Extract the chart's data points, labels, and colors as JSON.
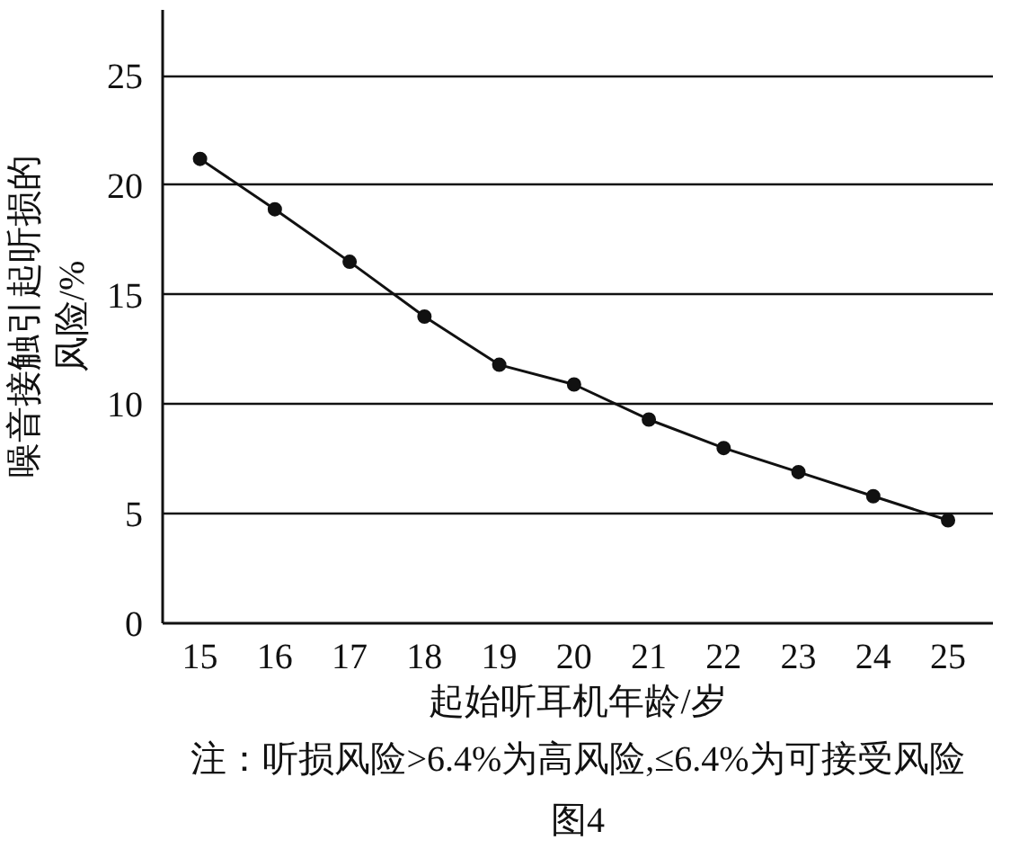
{
  "chart_data": {
    "type": "line",
    "xlabel": "起始听耳机年龄/岁",
    "ylabel": "噪音接触引起听损的风险/%",
    "x": [
      15,
      16,
      17,
      18,
      19,
      20,
      21,
      22,
      23,
      24,
      25
    ],
    "series": [
      {
        "color": "#111111",
        "values": [
          21.2,
          18.9,
          16.5,
          14.0,
          11.8,
          10.9,
          9.3,
          8.0,
          6.9,
          5.8,
          4.7
        ]
      }
    ],
    "xlim": [
      14.5,
      25.6
    ],
    "xticks": [
      15,
      16,
      17,
      18,
      19,
      20,
      21,
      22,
      23,
      24,
      25
    ],
    "ylim": [
      0,
      28
    ],
    "yticks": [
      0,
      5,
      10,
      15,
      20,
      25
    ],
    "grid": "y",
    "marker": "circle",
    "line_style": "solid",
    "annotations": [
      "注：听损风险>6.4%为高风险,≤6.4%为可接受风险",
      "图4"
    ]
  }
}
